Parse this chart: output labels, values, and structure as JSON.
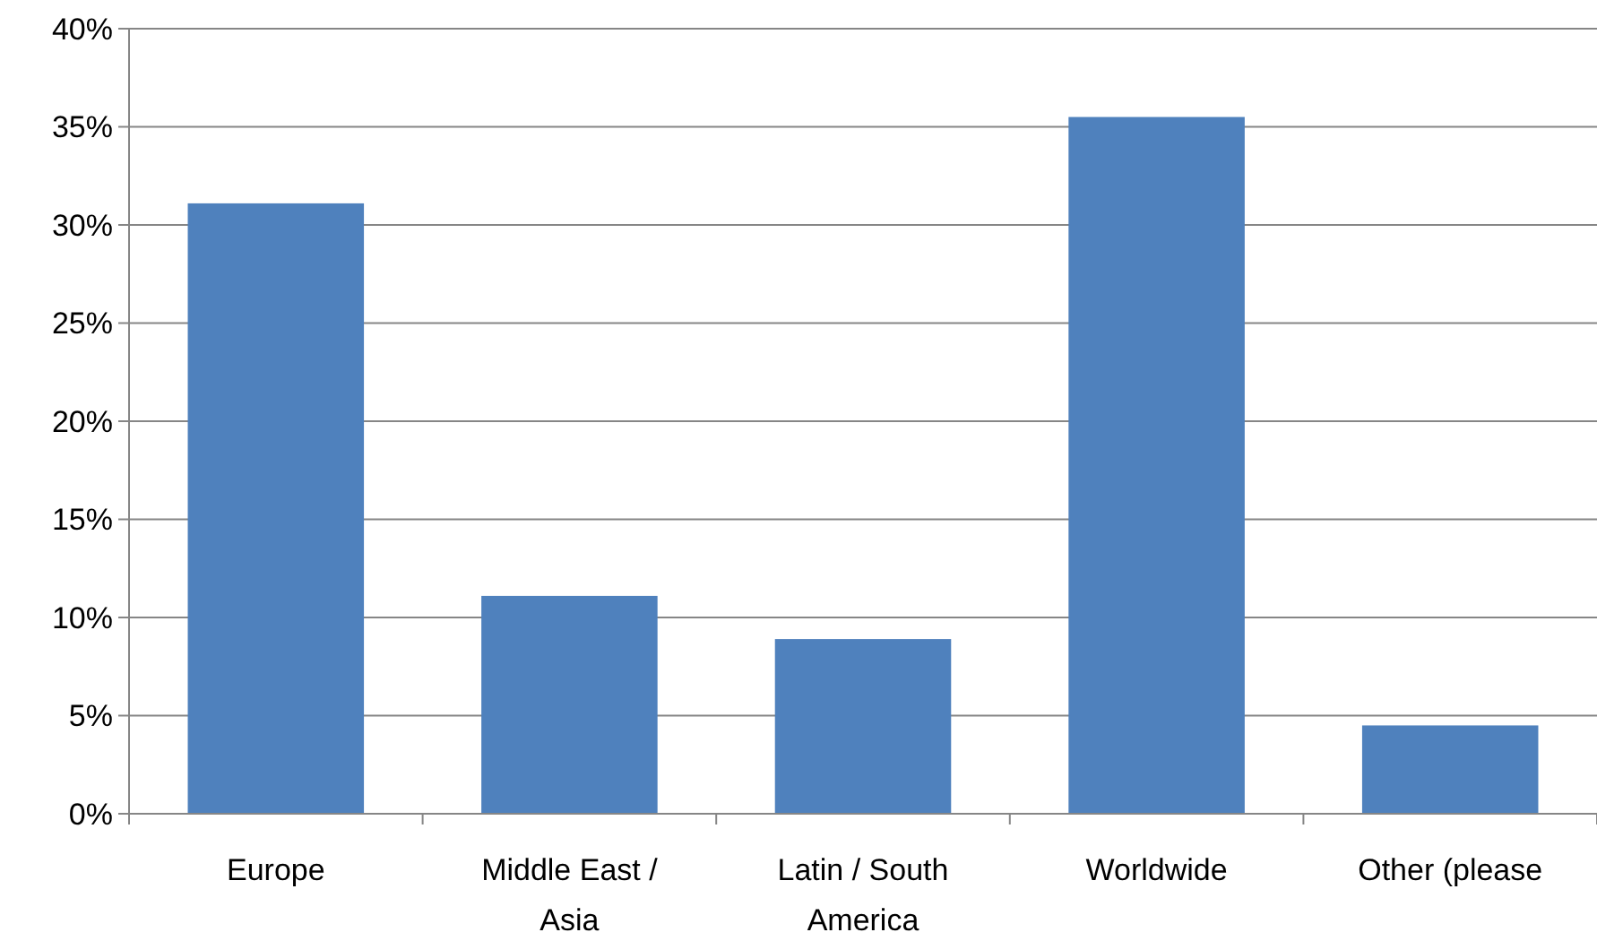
{
  "chart_data": {
    "type": "bar",
    "categories": [
      "Europe",
      "Middle East / Asia",
      "Latin / South America",
      "Worldwide",
      "Other (please"
    ],
    "values": [
      31.1,
      11.1,
      8.9,
      35.5,
      4.5
    ],
    "color": "#4f81bd",
    "ylim": [
      0,
      40
    ],
    "yticks": [
      {
        "value": 0,
        "label": "0%"
      },
      {
        "value": 5,
        "label": "5%"
      },
      {
        "value": 10,
        "label": "10%"
      },
      {
        "value": 15,
        "label": "15%"
      },
      {
        "value": 20,
        "label": "20%"
      },
      {
        "value": 25,
        "label": "25%"
      },
      {
        "value": 30,
        "label": "30%"
      },
      {
        "value": 35,
        "label": "35%"
      },
      {
        "value": 40,
        "label": "40%"
      }
    ],
    "grid": "y"
  }
}
